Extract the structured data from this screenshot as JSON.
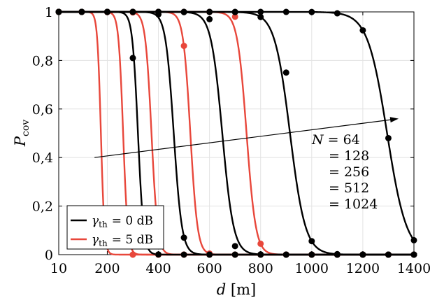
{
  "chart_data": {
    "type": "line",
    "xlabel": "d [m]",
    "ylabel": "P_cov",
    "xlim": [
      10,
      1400
    ],
    "ylim": [
      0,
      1
    ],
    "xticks": [
      10,
      200,
      400,
      600,
      800,
      1000,
      1200,
      1400
    ],
    "xtick_labels": [
      "10",
      "200",
      "400",
      "600",
      "800",
      "1000",
      "1200",
      "1400"
    ],
    "yticks": [
      0,
      0.2,
      0.4,
      0.6,
      0.8,
      1
    ],
    "ytick_labels": [
      "0",
      "0,2",
      "0,4",
      "0,6",
      "0,8",
      "1"
    ],
    "grid": true,
    "legend_position": "bottom-left",
    "marker_x": [
      10,
      100,
      200,
      300,
      400,
      500,
      600,
      700,
      800,
      900,
      1000,
      1100,
      1200,
      1300,
      1400
    ],
    "colors": {
      "th0": "#000000",
      "th5": "#e8473b"
    },
    "series": [
      {
        "group": "th0",
        "center": 320,
        "width": 11,
        "points": [
          [
            300,
            0.81
          ]
        ]
      },
      {
        "group": "th0",
        "center": 460,
        "width": 16,
        "points": [
          [
            400,
            0.99
          ],
          [
            500,
            0.07
          ]
        ]
      },
      {
        "group": "th0",
        "center": 650,
        "width": 22,
        "points": [
          [
            600,
            0.97
          ],
          [
            700,
            0.035
          ]
        ]
      },
      {
        "group": "th0",
        "center": 915,
        "width": 30,
        "points": [
          [
            900,
            0.75
          ]
        ]
      },
      {
        "group": "th0",
        "center": 1295,
        "width": 38,
        "points": [
          [
            1300,
            0.48
          ]
        ]
      },
      {
        "group": "th5",
        "center": 175,
        "width": 7,
        "points": [
          [
            200,
            0.12
          ]
        ]
      },
      {
        "group": "th5",
        "center": 262,
        "width": 9,
        "points": [
          [
            300,
            0.0
          ]
        ]
      },
      {
        "group": "th5",
        "center": 373,
        "width": 12,
        "points": [
          [
            400,
            0.0
          ]
        ]
      },
      {
        "group": "th5",
        "center": 525,
        "width": 14,
        "points": [
          [
            500,
            0.86
          ]
        ]
      },
      {
        "group": "th5",
        "center": 745,
        "width": 18,
        "points": [
          [
            700,
            0.98
          ]
        ]
      }
    ],
    "legend": [
      {
        "key": "th0",
        "symbol": "γ",
        "subscript": "th",
        "text": "= 0 dB"
      },
      {
        "key": "th5",
        "symbol": "γ",
        "subscript": "th",
        "text": "= 5 dB"
      }
    ],
    "annotation": {
      "lines": [
        "N = 64",
        "= 128",
        "= 256",
        "= 512",
        "= 1024"
      ],
      "arrow_from": [
        150,
        0.4
      ],
      "arrow_to": [
        1340,
        0.56
      ]
    }
  }
}
